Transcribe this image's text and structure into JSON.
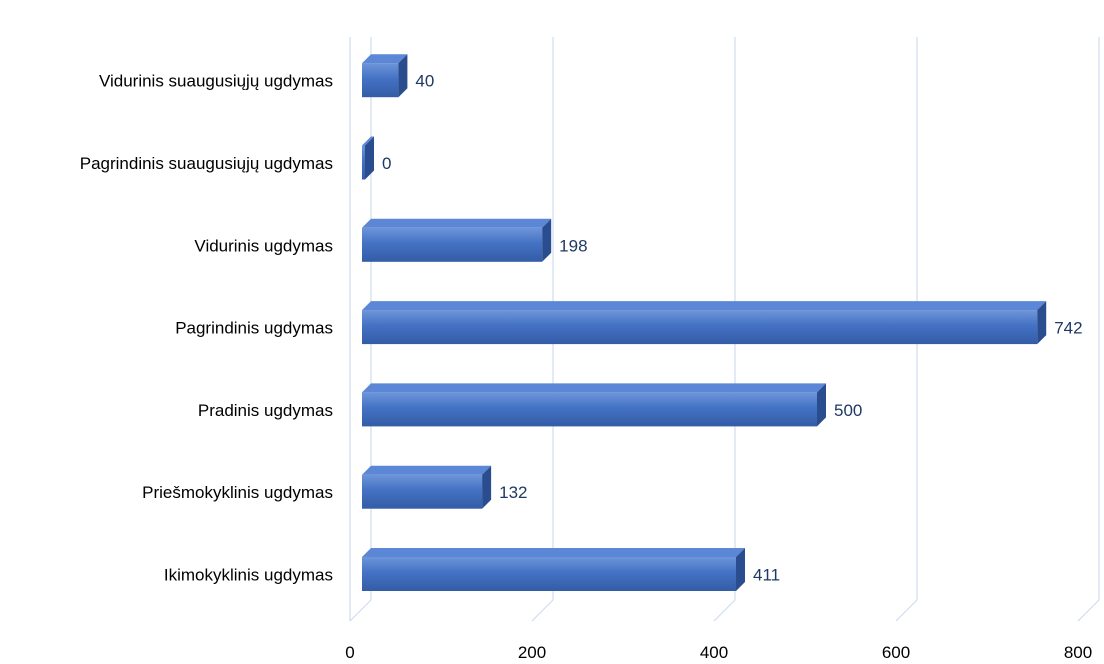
{
  "chart_data": {
    "type": "bar",
    "orientation": "horizontal",
    "style": "3d",
    "categories": [
      "Ikimokyklinis ugdymas",
      "Priešmokyklinis ugdymas",
      "Pradinis ugdymas",
      "Pagrindinis ugdymas",
      "Vidurinis ugdymas",
      "Pagrindinis suaugusiųjų ugdymas",
      "Vidurinis suaugusiųjų ugdymas"
    ],
    "values": [
      411,
      132,
      500,
      742,
      198,
      0,
      40
    ],
    "xlim": [
      0,
      800
    ],
    "ticks": [
      "0",
      "200",
      "400",
      "600",
      "800"
    ],
    "grid": true,
    "legend": "none",
    "colors": {
      "bar_front": "#4472c4",
      "bar_top": "#5b87d6",
      "bar_side": "#2a4d8f",
      "label": "#1f3864",
      "gridline": "#cfdcf0"
    }
  }
}
